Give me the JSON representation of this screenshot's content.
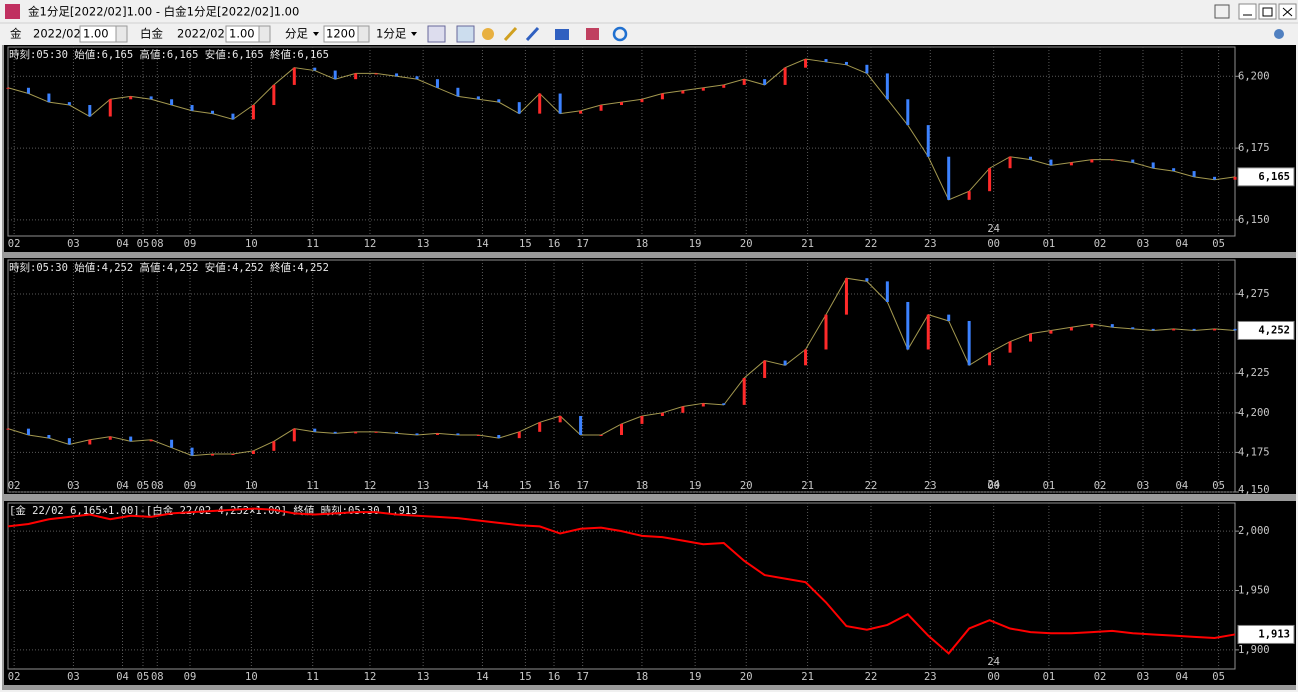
{
  "window": {
    "title": "金1分足[2022/02]1.00 - 白金1分足[2022/02]1.00"
  },
  "toolbar": {
    "item1": "金",
    "month1": "2022/02",
    "mult1": "1.00",
    "item2": "白金",
    "month2": "2022/02",
    "mult2": "1.00",
    "period": "分足",
    "count": "1200",
    "interval": "1分足"
  },
  "chart_data": [
    {
      "type": "candle",
      "header": "時刻:05:30 始値:6,165 高値:6,165 安値:6,165 終値:6,165",
      "x": [
        0,
        1,
        2,
        3,
        4,
        5,
        6,
        7,
        8,
        9,
        10,
        11,
        12,
        13,
        14,
        15,
        16,
        17,
        18,
        19,
        20,
        21,
        22,
        23,
        24,
        25,
        26,
        27,
        28,
        29,
        30,
        31,
        32,
        33,
        34,
        35,
        36,
        37,
        38,
        39,
        40,
        41,
        42,
        43,
        44,
        45,
        46,
        47,
        48,
        49,
        50,
        51,
        52,
        53,
        54,
        55,
        56,
        57,
        58,
        59,
        60
      ],
      "values": [
        6196,
        6194,
        6191,
        6190,
        6186,
        6192,
        6193,
        6192,
        6190,
        6188,
        6187,
        6185,
        6190,
        6197,
        6203,
        6202,
        6199,
        6201,
        6201,
        6200,
        6199,
        6196,
        6193,
        6192,
        6191,
        6187,
        6194,
        6187,
        6188,
        6190,
        6191,
        6192,
        6194,
        6195,
        6196,
        6197,
        6199,
        6197,
        6203,
        6206,
        6205,
        6204,
        6201,
        6192,
        6183,
        6172,
        6157,
        6160,
        6168,
        6172,
        6171,
        6169,
        6170,
        6171,
        6171,
        6170,
        6168,
        6167,
        6165,
        6164,
        6165
      ],
      "up_color": "#ff2a2a",
      "down_color": "#3c82ff",
      "line_color": "#e8d870",
      "xlim": [
        0,
        60
      ],
      "ylim": [
        6144.4,
        6210.2
      ],
      "xticks": [
        {
          "value": 0.3,
          "label": "02"
        },
        {
          "value": 3.2,
          "label": "03"
        },
        {
          "value": 5.6,
          "label": "04"
        },
        {
          "value": 6.6,
          "label": "05"
        },
        {
          "value": 7.3,
          "label": "08"
        },
        {
          "value": 8.9,
          "label": "09"
        },
        {
          "value": 11.9,
          "label": "10"
        },
        {
          "value": 14.9,
          "label": "11"
        },
        {
          "value": 17.7,
          "label": "12"
        },
        {
          "value": 20.3,
          "label": "13"
        },
        {
          "value": 23.2,
          "label": "14"
        },
        {
          "value": 25.3,
          "label": "15"
        },
        {
          "value": 26.7,
          "label": "16"
        },
        {
          "value": 28.1,
          "label": "17"
        },
        {
          "value": 31.0,
          "label": "18"
        },
        {
          "value": 33.6,
          "label": "19"
        },
        {
          "value": 36.1,
          "label": "20"
        },
        {
          "value": 39.1,
          "label": "21"
        },
        {
          "value": 42.2,
          "label": "22"
        },
        {
          "value": 45.1,
          "label": "23"
        },
        {
          "value": 48.2,
          "label": "00"
        },
        {
          "value": 50.9,
          "label": "01"
        },
        {
          "value": 53.4,
          "label": "02"
        },
        {
          "value": 55.5,
          "label": "03"
        },
        {
          "value": 57.4,
          "label": "04"
        },
        {
          "value": 59.2,
          "label": "05"
        }
      ],
      "yticks": [
        {
          "value": 6150,
          "label": "6,150"
        },
        {
          "value": 6175,
          "label": "6,175"
        },
        {
          "value": 6200,
          "label": "6,200"
        }
      ],
      "last_value": {
        "value": 6165,
        "label": "6,165"
      },
      "annotations": [
        {
          "x": 48.2,
          "text": "24"
        }
      ],
      "grid": true
    },
    {
      "type": "candle",
      "header": "時刻:05:30 始値:4,252 高値:4,252 安値:4,252 終値:4,252",
      "x": [
        0,
        1,
        2,
        3,
        4,
        5,
        6,
        7,
        8,
        9,
        10,
        11,
        12,
        13,
        14,
        15,
        16,
        17,
        18,
        19,
        20,
        21,
        22,
        23,
        24,
        25,
        26,
        27,
        28,
        29,
        30,
        31,
        32,
        33,
        34,
        35,
        36,
        37,
        38,
        39,
        40,
        41,
        42,
        43,
        44,
        45,
        46,
        47,
        48,
        49,
        50,
        51,
        52,
        53,
        54,
        55,
        56,
        57,
        58,
        59,
        60
      ],
      "values": [
        4190,
        4186,
        4184,
        4180,
        4183,
        4185,
        4182,
        4183,
        4178,
        4173,
        4174,
        4174,
        4176,
        4182,
        4190,
        4188,
        4187,
        4188,
        4188,
        4187,
        4186,
        4187,
        4186,
        4186,
        4184,
        4188,
        4194,
        4198,
        4186,
        4186,
        4193,
        4198,
        4200,
        4204,
        4206,
        4205,
        4222,
        4233,
        4230,
        4240,
        4262,
        4285,
        4283,
        4270,
        4240,
        4262,
        4258,
        4230,
        4238,
        4245,
        4250,
        4252,
        4254,
        4256,
        4254,
        4253,
        4252,
        4253,
        4252,
        4253,
        4252
      ],
      "up_color": "#ff2a2a",
      "down_color": "#3c82ff",
      "line_color": "#e8d870",
      "xlim": [
        0,
        60
      ],
      "ylim": [
        4150,
        4296.5
      ],
      "xticks": [
        {
          "value": 0.3,
          "label": "02"
        },
        {
          "value": 3.2,
          "label": "03"
        },
        {
          "value": 5.6,
          "label": "04"
        },
        {
          "value": 6.6,
          "label": "05"
        },
        {
          "value": 7.3,
          "label": "08"
        },
        {
          "value": 8.9,
          "label": "09"
        },
        {
          "value": 11.9,
          "label": "10"
        },
        {
          "value": 14.9,
          "label": "11"
        },
        {
          "value": 17.7,
          "label": "12"
        },
        {
          "value": 20.3,
          "label": "13"
        },
        {
          "value": 23.2,
          "label": "14"
        },
        {
          "value": 25.3,
          "label": "15"
        },
        {
          "value": 26.7,
          "label": "16"
        },
        {
          "value": 28.1,
          "label": "17"
        },
        {
          "value": 31.0,
          "label": "18"
        },
        {
          "value": 33.6,
          "label": "19"
        },
        {
          "value": 36.1,
          "label": "20"
        },
        {
          "value": 39.1,
          "label": "21"
        },
        {
          "value": 42.2,
          "label": "22"
        },
        {
          "value": 45.1,
          "label": "23"
        },
        {
          "value": 48.2,
          "label": "00"
        },
        {
          "value": 50.9,
          "label": "01"
        },
        {
          "value": 53.4,
          "label": "02"
        },
        {
          "value": 55.5,
          "label": "03"
        },
        {
          "value": 57.4,
          "label": "04"
        },
        {
          "value": 59.2,
          "label": "05"
        }
      ],
      "yticks": [
        {
          "value": 4150,
          "label": "4,150"
        },
        {
          "value": 4175,
          "label": "4,175"
        },
        {
          "value": 4200,
          "label": "4,200"
        },
        {
          "value": 4225,
          "label": "4,225"
        },
        {
          "value": 4275,
          "label": "4,275"
        }
      ],
      "last_value": {
        "value": 4252,
        "label": "4,252"
      },
      "annotations": [
        {
          "x": 48.2,
          "text": "24"
        }
      ],
      "grid": true
    },
    {
      "type": "line",
      "header": "[金 22/02 6,165×1.00]-[白金 22/02 4,252×1.00] 終値 時刻:05:30 1,913",
      "x": [
        0,
        1,
        2,
        3,
        4,
        5,
        6,
        7,
        8,
        9,
        10,
        11,
        12,
        13,
        14,
        15,
        16,
        17,
        18,
        19,
        20,
        21,
        22,
        23,
        24,
        25,
        26,
        27,
        28,
        29,
        30,
        31,
        32,
        33,
        34,
        35,
        36,
        37,
        38,
        39,
        40,
        41,
        42,
        43,
        44,
        45,
        46,
        47,
        48,
        49,
        50,
        51,
        52,
        53,
        54,
        55,
        56,
        57,
        58,
        59,
        60
      ],
      "values": [
        2004,
        2006,
        2010,
        2012,
        2014,
        2010,
        2013,
        2012,
        2015,
        2016,
        2017,
        2018,
        2019,
        2018,
        2015,
        2014,
        2015,
        2016,
        2016,
        2014,
        2013,
        2012,
        2011,
        2009,
        2007,
        2005,
        2004,
        1998,
        2002,
        2003,
        2000,
        1996,
        1995,
        1992,
        1989,
        1990,
        1975,
        1963,
        1960,
        1957,
        1940,
        1920,
        1917,
        1921,
        1930,
        1912,
        1897,
        1918,
        1925,
        1918,
        1915,
        1914,
        1914,
        1915,
        1916,
        1914,
        1913,
        1912,
        1911,
        1910,
        1913
      ],
      "color": "#ff0000",
      "xlim": [
        0,
        60
      ],
      "ylim": [
        1883.9,
        2023.7
      ],
      "xticks": [
        {
          "value": 0.3,
          "label": "02"
        },
        {
          "value": 3.2,
          "label": "03"
        },
        {
          "value": 5.6,
          "label": "04"
        },
        {
          "value": 6.6,
          "label": "05"
        },
        {
          "value": 7.3,
          "label": "08"
        },
        {
          "value": 8.9,
          "label": "09"
        },
        {
          "value": 11.9,
          "label": "10"
        },
        {
          "value": 14.9,
          "label": "11"
        },
        {
          "value": 17.7,
          "label": "12"
        },
        {
          "value": 20.3,
          "label": "13"
        },
        {
          "value": 23.2,
          "label": "14"
        },
        {
          "value": 25.3,
          "label": "15"
        },
        {
          "value": 26.7,
          "label": "16"
        },
        {
          "value": 28.1,
          "label": "17"
        },
        {
          "value": 31.0,
          "label": "18"
        },
        {
          "value": 33.6,
          "label": "19"
        },
        {
          "value": 36.1,
          "label": "20"
        },
        {
          "value": 39.1,
          "label": "21"
        },
        {
          "value": 42.2,
          "label": "22"
        },
        {
          "value": 45.1,
          "label": "23"
        },
        {
          "value": 48.2,
          "label": "00"
        },
        {
          "value": 50.9,
          "label": "01"
        },
        {
          "value": 53.4,
          "label": "02"
        },
        {
          "value": 55.5,
          "label": "03"
        },
        {
          "value": 57.4,
          "label": "04"
        },
        {
          "value": 59.2,
          "label": "05"
        }
      ],
      "yticks": [
        {
          "value": 1900,
          "label": "1,900"
        },
        {
          "value": 1950,
          "label": "1,950"
        },
        {
          "value": 2000,
          "label": "2,000"
        }
      ],
      "last_value": {
        "value": 1913,
        "label": "1,913"
      },
      "annotations": [
        {
          "x": 48.2,
          "text": "24"
        }
      ],
      "grid": true
    }
  ]
}
